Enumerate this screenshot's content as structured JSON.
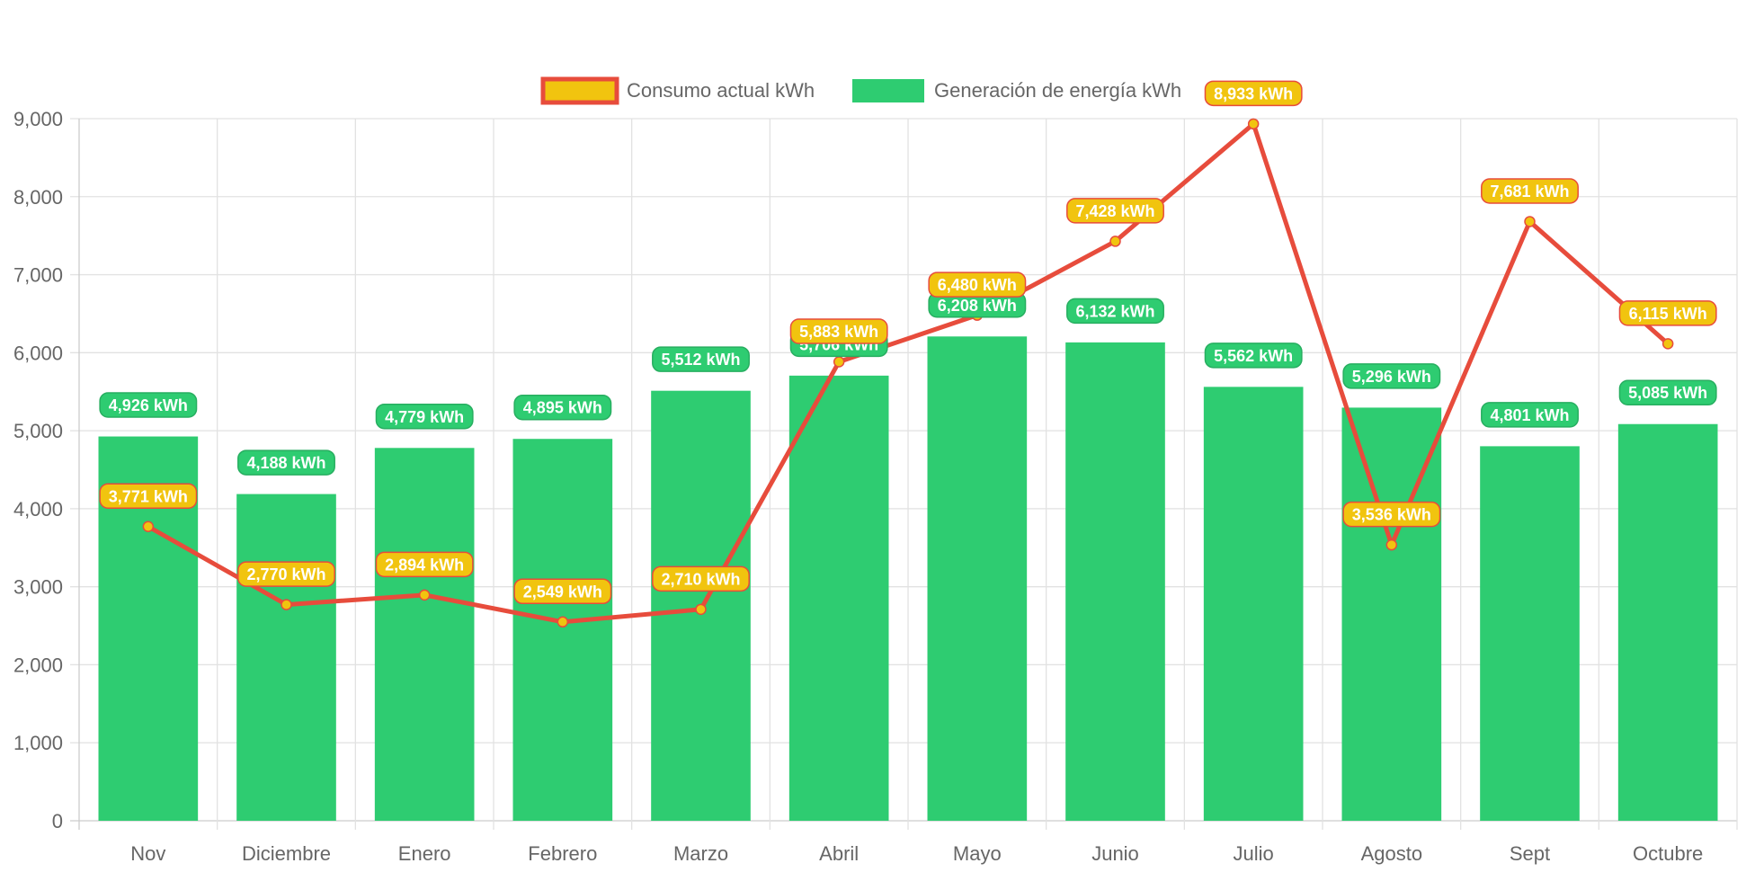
{
  "chart_data": {
    "type": "bar",
    "categories": [
      "Nov",
      "Diciembre",
      "Enero",
      "Febrero",
      "Marzo",
      "Abril",
      "Mayo",
      "Junio",
      "Julio",
      "Agosto",
      "Sept",
      "Octubre"
    ],
    "series": [
      {
        "name": "Consumo actual kWh",
        "type": "line",
        "color": "#e74c3c",
        "point_color": "#f1c40f",
        "values": [
          3771,
          2770,
          2894,
          2549,
          2710,
          5883,
          6480,
          7428,
          8933,
          3536,
          7681,
          6115
        ]
      },
      {
        "name": "Generación de energía kWh",
        "type": "bar",
        "color": "#2ecc71",
        "values": [
          4926,
          4188,
          4779,
          4895,
          5512,
          5706,
          6208,
          6132,
          5562,
          5296,
          4801,
          5085
        ]
      }
    ],
    "data_label_unit": "kWh",
    "ylim": [
      0,
      9000
    ],
    "yticks": [
      0,
      1000,
      2000,
      3000,
      4000,
      5000,
      6000,
      7000,
      8000,
      9000
    ],
    "grid": true,
    "legend": "top"
  }
}
